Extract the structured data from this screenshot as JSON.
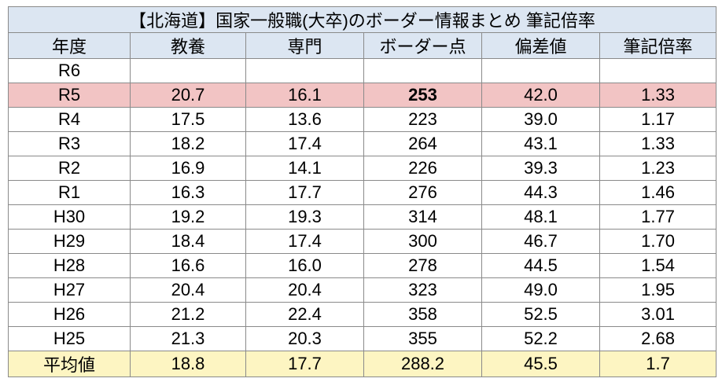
{
  "table": {
    "title": "【北海道】国家一般職(大卒)のボーダー情報まとめ 筆記倍率",
    "header": [
      "年度",
      "教養",
      "専門",
      "ボーダー点",
      "偏差値",
      "筆記倍率"
    ],
    "rows": [
      [
        "R6",
        null,
        null,
        null,
        null,
        null
      ],
      [
        "R5",
        "20.7",
        "16.1",
        "253",
        "42.0",
        "1.33"
      ],
      [
        "R4",
        "17.5",
        "13.6",
        "223",
        "39.0",
        "1.17"
      ],
      [
        "R3",
        "18.2",
        "17.4",
        "264",
        "43.1",
        "1.33"
      ],
      [
        "R2",
        "16.9",
        "14.1",
        "226",
        "39.3",
        "1.23"
      ],
      [
        "R1",
        "16.3",
        "17.7",
        "276",
        "44.3",
        "1.46"
      ],
      [
        "H30",
        "19.2",
        "19.3",
        "314",
        "48.1",
        "1.77"
      ],
      [
        "H29",
        "18.4",
        "17.4",
        "300",
        "46.7",
        "1.70"
      ],
      [
        "H28",
        "16.6",
        "16.0",
        "278",
        "44.5",
        "1.54"
      ],
      [
        "H27",
        "20.4",
        "20.4",
        "323",
        "49.0",
        "1.95"
      ],
      [
        "H26",
        "21.2",
        "22.4",
        "358",
        "52.5",
        "3.01"
      ],
      [
        "H25",
        "21.3",
        "20.3",
        "355",
        "52.2",
        "2.68"
      ]
    ],
    "footer": [
      "平均値",
      "18.8",
      "17.7",
      "288.2",
      "45.5",
      "1.7"
    ]
  }
}
